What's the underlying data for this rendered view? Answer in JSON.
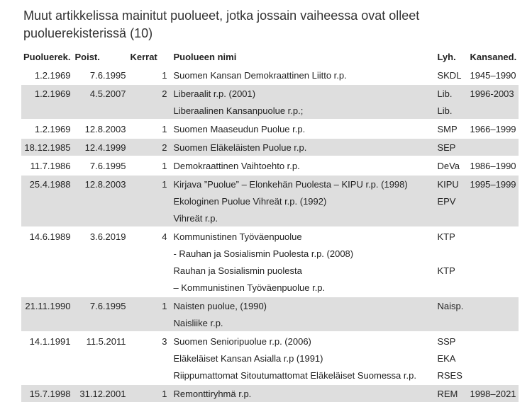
{
  "caption": "Muut artikkelissa mainitut puolueet, jotka jossain vaiheessa ovat olleet puoluerekisterissä (10)",
  "headers": [
    "Puoluerek.",
    "Poist.",
    "Kerrat",
    "Puolueen nimi",
    "Lyh.",
    "Kansaned."
  ],
  "groups": [
    {
      "rows": [
        {
          "reg": "1.2.1969",
          "removed": "7.6.1995",
          "times": "1",
          "name": "Suomen Kansan Demokraattinen Liitto  r.p.",
          "abbr": "SKDL",
          "parl": "1945–1990"
        }
      ]
    },
    {
      "rows": [
        {
          "reg": "1.2.1969",
          "removed": "4.5.2007",
          "times": "2",
          "name": "Liberaalit r.p. (2001)",
          "abbr": "Lib.",
          "parl": "1996-2003"
        },
        {
          "reg": "",
          "removed": "",
          "times": "",
          "name": "Liberaalinen Kansanpuolue r.p.;",
          "abbr": "Lib.",
          "parl": ""
        }
      ]
    },
    {
      "rows": [
        {
          "reg": "1.2.1969",
          "removed": "12.8.2003",
          "times": "1",
          "name": "Suomen Maaseudun Puolue  r.p.",
          "abbr": "SMP",
          "parl": "1966–1999"
        }
      ]
    },
    {
      "rows": [
        {
          "reg": "18.12.1985",
          "removed": "12.4.1999",
          "times": "2",
          "name": "Suomen Eläkeläisten Puolue r.p.",
          "abbr": "SEP",
          "parl": ""
        }
      ]
    },
    {
      "rows": [
        {
          "reg": "11.7.1986",
          "removed": "7.6.1995",
          "times": "1",
          "name": "Demokraattinen Vaihtoehto r.p.",
          "abbr": "DeVa",
          "parl": "1986–1990"
        }
      ]
    },
    {
      "rows": [
        {
          "reg": "25.4.1988",
          "removed": "12.8.2003",
          "times": "1",
          "name": "Kirjava ”Puolue” – Elonkehän Puolesta – KIPU r.p. (1998)",
          "abbr": "KIPU",
          "parl": "1995–1999"
        },
        {
          "reg": "",
          "removed": "",
          "times": "",
          "name": "Ekologinen Puolue Vihreät r.p. (1992)",
          "abbr": "EPV",
          "parl": ""
        },
        {
          "reg": "",
          "removed": "",
          "times": "",
          "name": "Vihreät r.p.",
          "abbr": "",
          "parl": ""
        }
      ]
    },
    {
      "rows": [
        {
          "reg": "14.6.1989",
          "removed": "3.6.2019",
          "times": "4",
          "name": "Kommunistinen Työväenpuolue",
          "abbr": "KTP",
          "parl": ""
        },
        {
          "reg": "",
          "removed": "",
          "times": "",
          "name": "- Rauhan ja Sosialismin Puolesta r.p. (2008)",
          "abbr": "",
          "parl": ""
        },
        {
          "reg": "",
          "removed": "",
          "times": "",
          "name": "Rauhan ja Sosialismin puolesta",
          "abbr": "KTP",
          "parl": ""
        },
        {
          "reg": "",
          "removed": "",
          "times": "",
          "name": "– Kommunistinen Työväenpuolue r.p.",
          "abbr": "",
          "parl": ""
        }
      ]
    },
    {
      "rows": [
        {
          "reg": "21.11.1990",
          "removed": "7.6.1995",
          "times": "1",
          "name": "Naisten puolue,  (1990)",
          "abbr": "Naisp.",
          "parl": ""
        },
        {
          "reg": "",
          "removed": "",
          "times": "",
          "name": "Naisliike r.p.",
          "abbr": "",
          "parl": ""
        }
      ]
    },
    {
      "rows": [
        {
          "reg": "14.1.1991",
          "removed": "11.5.2011",
          "times": "3",
          "name": "Suomen Senioripuolue r.p. (2006)",
          "abbr": "SSP",
          "parl": ""
        },
        {
          "reg": "",
          "removed": "",
          "times": "",
          "name": "Eläkeläiset Kansan Asialla r.p (1991)",
          "abbr": "EKA",
          "parl": ""
        },
        {
          "reg": "",
          "removed": "",
          "times": "",
          "name": "Riippumattomat Sitoutumattomat Eläkeläiset Suomessa r.p.",
          "abbr": "RSES",
          "parl": ""
        }
      ]
    },
    {
      "rows": [
        {
          "reg": "15.7.1998",
          "removed": "31.12.2001",
          "times": "1",
          "name": "Remonttiryhmä r.p.",
          "abbr": "REM",
          "parl": "1998–2021"
        }
      ]
    }
  ]
}
